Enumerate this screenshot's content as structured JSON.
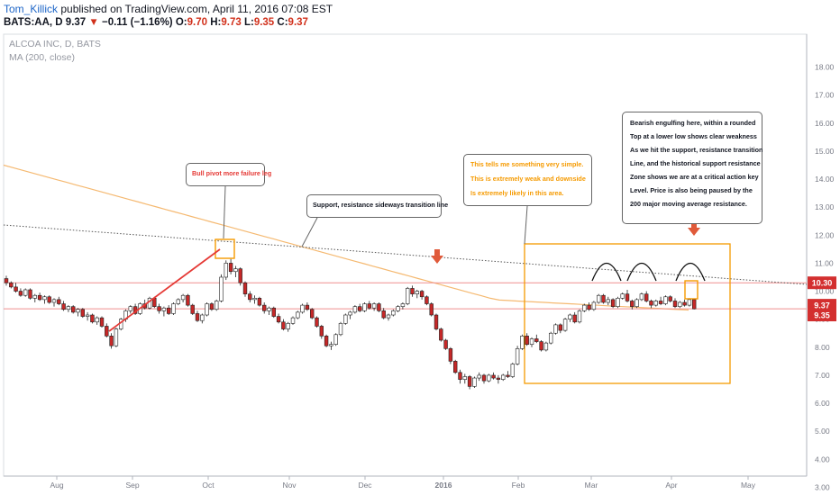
{
  "header": {
    "author": "Tom_Killick",
    "published": "published on TradingView.com, April 11, 2016 07:08 EST",
    "symbol": "BATS:AA, D",
    "last": "9.37",
    "change": "−0.11 (−1.16%)",
    "open_label": "O:",
    "open": "9.70",
    "high_label": "H:",
    "high": "9.73",
    "low_label": "L:",
    "low": "9.35",
    "close_label": "C:",
    "close": "9.37"
  },
  "legend": {
    "title": "ALCOA INC, D, BATS",
    "indicator": "MA (200, close)"
  },
  "annotations": {
    "bull_pivot": "Bull pivot more failure leg",
    "support_line": "Support, resistance sideways transition line",
    "orange_note": [
      "This tells me something very simple.",
      "This is extremely weak and downside",
      "Is extremely likely in this area."
    ],
    "bearish_note": [
      "Bearish engulfing here, within a rounded",
      "Top at a lower low shows clear weakness",
      "As we hit the support, resistance transition",
      "Line, and the historical support resistance",
      "Zone shows we are at a critical action key",
      "Level. Price is also being paused by the",
      "200 major moving average resistance."
    ]
  },
  "price_labels": [
    "10.30",
    "9.37",
    "9.35"
  ],
  "colors": {
    "up": "#ffffff",
    "down": "#c62828",
    "ma": "#f5b971",
    "box": "#f59a00",
    "hline": "#ef8f8f",
    "trend": "#e53935",
    "arrow": "#e05a3a",
    "tag": "#d32f2f"
  },
  "chart_data": {
    "type": "candlestick",
    "title": "ALCOA INC, D, BATS",
    "x_ticks": [
      "Aug",
      "Sep",
      "Oct",
      "Nov",
      "Dec",
      "2016",
      "Feb",
      "Mar",
      "Apr",
      "May"
    ],
    "y_ticks": [
      "3.00",
      "4.00",
      "5.00",
      "6.00",
      "7.00",
      "8.00",
      "9.00",
      "10.00",
      "11.00",
      "12.00",
      "13.00",
      "14.00",
      "15.00",
      "16.00",
      "17.00",
      "18.00"
    ],
    "ylim": [
      2.8,
      18.6
    ],
    "horizontal_levels": [
      10.3,
      9.37
    ],
    "ohlc": [
      [
        10.45,
        10.55,
        10.2,
        10.3
      ],
      [
        10.3,
        10.35,
        10.1,
        10.15
      ],
      [
        10.15,
        10.3,
        9.95,
        10.0
      ],
      [
        10.0,
        10.1,
        9.8,
        9.85
      ],
      [
        9.85,
        10.1,
        9.8,
        10.05
      ],
      [
        10.05,
        10.1,
        9.7,
        9.75
      ],
      [
        9.75,
        9.9,
        9.6,
        9.85
      ],
      [
        9.85,
        9.95,
        9.65,
        9.7
      ],
      [
        9.7,
        9.85,
        9.55,
        9.8
      ],
      [
        9.8,
        9.85,
        9.55,
        9.6
      ],
      [
        9.6,
        9.75,
        9.45,
        9.7
      ],
      [
        9.7,
        9.8,
        9.5,
        9.55
      ],
      [
        9.55,
        9.65,
        9.3,
        9.35
      ],
      [
        9.35,
        9.5,
        9.25,
        9.45
      ],
      [
        9.45,
        9.5,
        9.2,
        9.25
      ],
      [
        9.25,
        9.4,
        9.1,
        9.35
      ],
      [
        9.35,
        9.4,
        9.05,
        9.1
      ],
      [
        9.1,
        9.25,
        8.95,
        9.15
      ],
      [
        9.15,
        9.2,
        8.85,
        8.9
      ],
      [
        8.9,
        9.1,
        8.8,
        9.05
      ],
      [
        9.05,
        9.1,
        8.7,
        8.75
      ],
      [
        8.75,
        8.85,
        8.35,
        8.4
      ],
      [
        8.4,
        8.5,
        7.95,
        8.05
      ],
      [
        8.05,
        8.7,
        8.0,
        8.65
      ],
      [
        8.65,
        9.05,
        8.6,
        9.0
      ],
      [
        9.0,
        9.35,
        8.9,
        9.3
      ],
      [
        9.3,
        9.5,
        9.2,
        9.45
      ],
      [
        9.45,
        9.55,
        9.15,
        9.2
      ],
      [
        9.2,
        9.6,
        9.15,
        9.55
      ],
      [
        9.55,
        9.7,
        9.35,
        9.4
      ],
      [
        9.4,
        9.8,
        9.35,
        9.75
      ],
      [
        9.75,
        9.8,
        9.4,
        9.45
      ],
      [
        9.45,
        9.55,
        9.2,
        9.3
      ],
      [
        9.3,
        9.45,
        9.1,
        9.4
      ],
      [
        9.4,
        9.5,
        9.15,
        9.2
      ],
      [
        9.2,
        9.6,
        9.15,
        9.55
      ],
      [
        9.55,
        9.75,
        9.5,
        9.7
      ],
      [
        9.7,
        9.9,
        9.6,
        9.85
      ],
      [
        9.85,
        9.9,
        9.45,
        9.5
      ],
      [
        9.5,
        9.55,
        9.15,
        9.2
      ],
      [
        9.2,
        9.3,
        8.9,
        8.95
      ],
      [
        8.95,
        9.2,
        8.85,
        9.15
      ],
      [
        9.15,
        9.6,
        9.1,
        9.55
      ],
      [
        9.55,
        9.6,
        9.3,
        9.35
      ],
      [
        9.35,
        9.7,
        9.3,
        9.65
      ],
      [
        9.65,
        10.6,
        9.6,
        10.5
      ],
      [
        10.5,
        11.1,
        10.4,
        11.0
      ],
      [
        11.0,
        11.15,
        10.6,
        10.7
      ],
      [
        10.7,
        10.9,
        10.5,
        10.8
      ],
      [
        10.8,
        10.85,
        10.2,
        10.3
      ],
      [
        10.3,
        10.35,
        9.8,
        9.9
      ],
      [
        9.9,
        10.0,
        9.6,
        9.7
      ],
      [
        9.7,
        9.85,
        9.55,
        9.75
      ],
      [
        9.75,
        9.8,
        9.45,
        9.5
      ],
      [
        9.5,
        9.6,
        9.2,
        9.3
      ],
      [
        9.3,
        9.45,
        9.15,
        9.4
      ],
      [
        9.4,
        9.45,
        9.05,
        9.1
      ],
      [
        9.1,
        9.2,
        8.85,
        8.9
      ],
      [
        8.9,
        9.0,
        8.6,
        8.65
      ],
      [
        8.65,
        8.9,
        8.55,
        8.85
      ],
      [
        8.85,
        9.1,
        8.8,
        9.05
      ],
      [
        9.05,
        9.3,
        9.0,
        9.25
      ],
      [
        9.25,
        9.55,
        9.2,
        9.5
      ],
      [
        9.5,
        9.6,
        9.3,
        9.35
      ],
      [
        9.35,
        9.4,
        9.0,
        9.05
      ],
      [
        9.05,
        9.1,
        8.7,
        8.75
      ],
      [
        8.75,
        8.8,
        8.3,
        8.4
      ],
      [
        8.4,
        8.45,
        8.0,
        8.05
      ],
      [
        8.05,
        8.2,
        7.9,
        8.1
      ],
      [
        8.1,
        8.5,
        8.05,
        8.45
      ],
      [
        8.45,
        8.9,
        8.4,
        8.85
      ],
      [
        8.85,
        9.2,
        8.8,
        9.15
      ],
      [
        9.15,
        9.3,
        9.0,
        9.25
      ],
      [
        9.25,
        9.5,
        9.2,
        9.45
      ],
      [
        9.45,
        9.55,
        9.25,
        9.3
      ],
      [
        9.3,
        9.6,
        9.25,
        9.55
      ],
      [
        9.55,
        9.65,
        9.35,
        9.4
      ],
      [
        9.4,
        9.6,
        9.3,
        9.55
      ],
      [
        9.55,
        9.6,
        9.25,
        9.3
      ],
      [
        9.3,
        9.4,
        9.0,
        9.05
      ],
      [
        9.05,
        9.2,
        8.95,
        9.15
      ],
      [
        9.15,
        9.35,
        9.1,
        9.3
      ],
      [
        9.3,
        9.5,
        9.25,
        9.45
      ],
      [
        9.45,
        9.6,
        9.35,
        9.55
      ],
      [
        9.55,
        10.15,
        9.5,
        10.1
      ],
      [
        10.1,
        10.2,
        9.8,
        9.9
      ],
      [
        9.9,
        10.05,
        9.75,
        10.0
      ],
      [
        10.0,
        10.05,
        9.7,
        9.8
      ],
      [
        9.8,
        9.85,
        9.5,
        9.55
      ],
      [
        9.55,
        9.6,
        9.1,
        9.15
      ],
      [
        9.15,
        9.2,
        8.6,
        8.65
      ],
      [
        8.65,
        8.7,
        8.2,
        8.25
      ],
      [
        8.25,
        8.3,
        7.9,
        7.95
      ],
      [
        7.95,
        8.0,
        7.4,
        7.5
      ],
      [
        7.5,
        7.55,
        7.05,
        7.1
      ],
      [
        7.1,
        7.2,
        6.7,
        6.85
      ],
      [
        6.85,
        7.05,
        6.7,
        6.95
      ],
      [
        6.95,
        7.0,
        6.5,
        6.6
      ],
      [
        6.6,
        6.95,
        6.55,
        6.9
      ],
      [
        6.9,
        7.1,
        6.8,
        7.0
      ],
      [
        7.0,
        7.05,
        6.7,
        6.8
      ],
      [
        6.8,
        7.05,
        6.75,
        7.0
      ],
      [
        7.0,
        7.1,
        6.85,
        6.9
      ],
      [
        6.9,
        7.0,
        6.7,
        6.85
      ],
      [
        6.85,
        7.05,
        6.8,
        7.0
      ],
      [
        7.0,
        7.15,
        6.9,
        6.95
      ],
      [
        6.95,
        7.45,
        6.9,
        7.4
      ],
      [
        7.4,
        8.05,
        7.35,
        7.95
      ],
      [
        7.95,
        8.45,
        7.9,
        8.4
      ],
      [
        8.4,
        8.5,
        8.05,
        8.1
      ],
      [
        8.1,
        8.35,
        8.0,
        8.3
      ],
      [
        8.3,
        8.45,
        8.15,
        8.2
      ],
      [
        8.2,
        8.25,
        7.85,
        7.9
      ],
      [
        7.9,
        8.2,
        7.85,
        8.15
      ],
      [
        8.15,
        8.55,
        8.1,
        8.5
      ],
      [
        8.5,
        8.85,
        8.45,
        8.8
      ],
      [
        8.8,
        8.85,
        8.5,
        8.6
      ],
      [
        8.6,
        9.05,
        8.55,
        9.0
      ],
      [
        9.0,
        9.2,
        8.9,
        9.15
      ],
      [
        9.15,
        9.25,
        8.85,
        8.9
      ],
      [
        8.9,
        9.35,
        8.85,
        9.3
      ],
      [
        9.3,
        9.55,
        9.25,
        9.5
      ],
      [
        9.5,
        9.6,
        9.3,
        9.35
      ],
      [
        9.35,
        9.65,
        9.3,
        9.6
      ],
      [
        9.6,
        9.9,
        9.55,
        9.85
      ],
      [
        9.85,
        9.9,
        9.55,
        9.6
      ],
      [
        9.6,
        9.8,
        9.5,
        9.7
      ],
      [
        9.7,
        9.75,
        9.4,
        9.45
      ],
      [
        9.45,
        9.8,
        9.4,
        9.75
      ],
      [
        9.75,
        9.95,
        9.7,
        9.9
      ],
      [
        9.9,
        10.05,
        9.6,
        9.65
      ],
      [
        9.65,
        9.7,
        9.35,
        9.45
      ],
      [
        9.45,
        9.75,
        9.4,
        9.7
      ],
      [
        9.7,
        9.95,
        9.65,
        9.9
      ],
      [
        9.9,
        10.0,
        9.6,
        9.65
      ],
      [
        9.65,
        9.7,
        9.4,
        9.5
      ],
      [
        9.5,
        9.7,
        9.45,
        9.65
      ],
      [
        9.65,
        9.8,
        9.5,
        9.55
      ],
      [
        9.55,
        9.85,
        9.5,
        9.8
      ],
      [
        9.8,
        9.85,
        9.6,
        9.65
      ],
      [
        9.65,
        9.75,
        9.4,
        9.45
      ],
      [
        9.45,
        9.65,
        9.4,
        9.6
      ],
      [
        9.6,
        9.7,
        9.45,
        9.5
      ],
      [
        9.5,
        9.75,
        9.45,
        9.7
      ],
      [
        9.7,
        9.73,
        9.35,
        9.37
      ]
    ]
  }
}
